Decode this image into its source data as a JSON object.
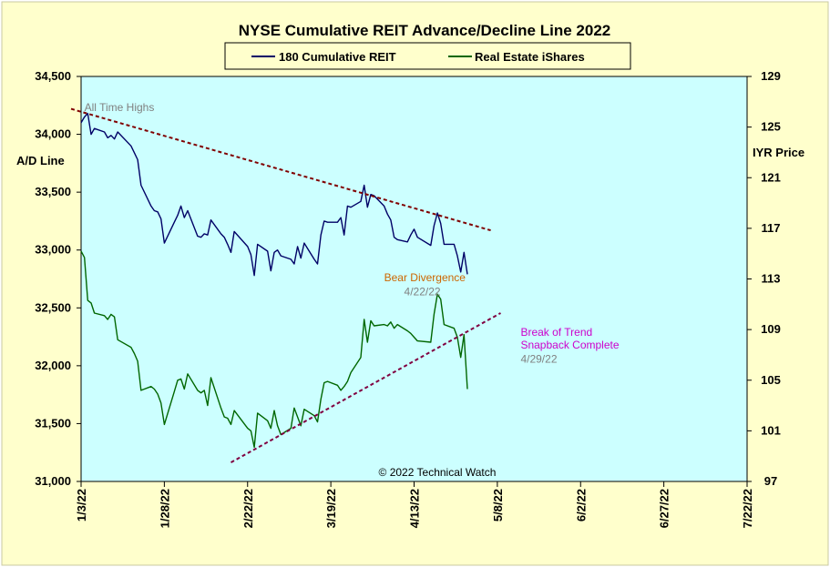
{
  "chart_data": {
    "type": "line",
    "title": "NYSE Cumulative  REIT Advance/Decline  Line 2022",
    "left_axis": {
      "label": "A/D Line",
      "range": [
        31000,
        34500
      ],
      "ticks": [
        "31,000",
        "31,500",
        "32,000",
        "32,500",
        "33,000",
        "33,500",
        "34,000",
        "34,500"
      ]
    },
    "right_axis": {
      "label": "IYR Price",
      "range": [
        97,
        129
      ],
      "ticks": [
        "97",
        "101",
        "105",
        "109",
        "113",
        "117",
        "121",
        "125",
        "129"
      ]
    },
    "x_axis": {
      "start": "1/3/22",
      "end": "7/22/22",
      "tick_labels": [
        "1/3/22",
        "1/28/22",
        "2/22/22",
        "3/19/22",
        "4/13/22",
        "5/8/22",
        "6/2/22",
        "6/27/22",
        "7/22/22"
      ]
    },
    "legend": {
      "placement": "top-center"
    },
    "grid": false,
    "colors": {
      "plot_background": "#ccffff",
      "outer_background": "#ffffcc",
      "border": "#ffffcc",
      "a_d_line": "#000066",
      "iyr_price": "#006600",
      "trendline": "#800000",
      "support_line": "#800040"
    },
    "series": [
      {
        "name": "180 Cumulative REIT",
        "axis": "left",
        "points": [
          [
            "1/3/22",
            34100
          ],
          [
            "1/4/22",
            34150
          ],
          [
            "1/5/22",
            34180
          ],
          [
            "1/6/22",
            34000
          ],
          [
            "1/7/22",
            34050
          ],
          [
            "1/10/22",
            34020
          ],
          [
            "1/11/22",
            33970
          ],
          [
            "1/12/22",
            33990
          ],
          [
            "1/13/22",
            33960
          ],
          [
            "1/14/22",
            34020
          ],
          [
            "1/18/22",
            33900
          ],
          [
            "1/19/22",
            33840
          ],
          [
            "1/20/22",
            33780
          ],
          [
            "1/21/22",
            33560
          ],
          [
            "1/24/22",
            33380
          ],
          [
            "1/25/22",
            33340
          ],
          [
            "1/26/22",
            33330
          ],
          [
            "1/27/22",
            33270
          ],
          [
            "1/28/22",
            33060
          ],
          [
            "1/31/22",
            33240
          ],
          [
            "2/1/22",
            33300
          ],
          [
            "2/2/22",
            33380
          ],
          [
            "2/3/22",
            33280
          ],
          [
            "2/4/22",
            33340
          ],
          [
            "2/7/22",
            33120
          ],
          [
            "2/8/22",
            33110
          ],
          [
            "2/9/22",
            33140
          ],
          [
            "2/10/22",
            33130
          ],
          [
            "2/11/22",
            33260
          ],
          [
            "2/14/22",
            33140
          ],
          [
            "2/15/22",
            33110
          ],
          [
            "2/16/22",
            33050
          ],
          [
            "2/17/22",
            32980
          ],
          [
            "2/18/22",
            33160
          ],
          [
            "2/22/22",
            33030
          ],
          [
            "2/23/22",
            32960
          ],
          [
            "2/24/22",
            32780
          ],
          [
            "2/25/22",
            33050
          ],
          [
            "2/28/22",
            32990
          ],
          [
            "3/1/22",
            32820
          ],
          [
            "3/2/22",
            32980
          ],
          [
            "3/3/22",
            33000
          ],
          [
            "3/4/22",
            32950
          ],
          [
            "3/7/22",
            32920
          ],
          [
            "3/8/22",
            32880
          ],
          [
            "3/9/22",
            33030
          ],
          [
            "3/10/22",
            32930
          ],
          [
            "3/11/22",
            33060
          ],
          [
            "3/14/22",
            32920
          ],
          [
            "3/15/22",
            32880
          ],
          [
            "3/16/22",
            33130
          ],
          [
            "3/17/22",
            33250
          ],
          [
            "3/18/22",
            33240
          ],
          [
            "3/21/22",
            33240
          ],
          [
            "3/22/22",
            33280
          ],
          [
            "3/23/22",
            33130
          ],
          [
            "3/24/22",
            33380
          ],
          [
            "3/25/22",
            33370
          ],
          [
            "3/28/22",
            33420
          ],
          [
            "3/29/22",
            33560
          ],
          [
            "3/30/22",
            33370
          ],
          [
            "3/31/22",
            33480
          ],
          [
            "4/1/22",
            33470
          ],
          [
            "4/4/22",
            33380
          ],
          [
            "4/5/22",
            33310
          ],
          [
            "4/6/22",
            33260
          ],
          [
            "4/7/22",
            33110
          ],
          [
            "4/8/22",
            33090
          ],
          [
            "4/11/22",
            33070
          ],
          [
            "4/12/22",
            33130
          ],
          [
            "4/13/22",
            33180
          ],
          [
            "4/14/22",
            33110
          ],
          [
            "4/18/22",
            33040
          ],
          [
            "4/19/22",
            33210
          ],
          [
            "4/20/22",
            33320
          ],
          [
            "4/21/22",
            33230
          ],
          [
            "4/22/22",
            33050
          ],
          [
            "4/25/22",
            33050
          ],
          [
            "4/26/22",
            32950
          ],
          [
            "4/27/22",
            32810
          ],
          [
            "4/28/22",
            32980
          ],
          [
            "4/29/22",
            32790
          ]
        ]
      },
      {
        "name": "Real Estate iShares",
        "axis": "right",
        "points": [
          [
            "1/3/22",
            115.2
          ],
          [
            "1/4/22",
            114.7
          ],
          [
            "1/5/22",
            111.3
          ],
          [
            "1/6/22",
            111.1
          ],
          [
            "1/7/22",
            110.3
          ],
          [
            "1/10/22",
            110.1
          ],
          [
            "1/11/22",
            109.8
          ],
          [
            "1/12/22",
            110.2
          ],
          [
            "1/13/22",
            110.0
          ],
          [
            "1/14/22",
            108.2
          ],
          [
            "1/18/22",
            107.6
          ],
          [
            "1/19/22",
            107.1
          ],
          [
            "1/20/22",
            106.5
          ],
          [
            "1/21/22",
            104.2
          ],
          [
            "1/24/22",
            104.5
          ],
          [
            "1/25/22",
            104.3
          ],
          [
            "1/26/22",
            103.9
          ],
          [
            "1/27/22",
            103.2
          ],
          [
            "1/28/22",
            101.5
          ],
          [
            "1/31/22",
            104.1
          ],
          [
            "2/1/22",
            105.0
          ],
          [
            "2/2/22",
            105.1
          ],
          [
            "2/3/22",
            104.3
          ],
          [
            "2/4/22",
            105.5
          ],
          [
            "2/7/22",
            104.2
          ],
          [
            "2/8/22",
            104.0
          ],
          [
            "2/9/22",
            104.2
          ],
          [
            "2/10/22",
            103.0
          ],
          [
            "2/11/22",
            105.2
          ],
          [
            "2/14/22",
            102.8
          ],
          [
            "2/15/22",
            102.1
          ],
          [
            "2/16/22",
            102.0
          ],
          [
            "2/17/22",
            101.5
          ],
          [
            "2/18/22",
            102.6
          ],
          [
            "2/22/22",
            101.2
          ],
          [
            "2/23/22",
            101.0
          ],
          [
            "2/24/22",
            99.7
          ],
          [
            "2/25/22",
            102.4
          ],
          [
            "2/28/22",
            101.8
          ],
          [
            "3/1/22",
            101.2
          ],
          [
            "3/2/22",
            102.6
          ],
          [
            "3/3/22",
            101.4
          ],
          [
            "3/4/22",
            100.7
          ],
          [
            "3/7/22",
            101.2
          ],
          [
            "3/8/22",
            102.8
          ],
          [
            "3/9/22",
            102.1
          ],
          [
            "3/10/22",
            101.4
          ],
          [
            "3/11/22",
            102.7
          ],
          [
            "3/14/22",
            102.2
          ],
          [
            "3/15/22",
            101.7
          ],
          [
            "3/16/22",
            103.5
          ],
          [
            "3/17/22",
            104.8
          ],
          [
            "3/18/22",
            104.9
          ],
          [
            "3/21/22",
            104.6
          ],
          [
            "3/22/22",
            104.2
          ],
          [
            "3/23/22",
            104.5
          ],
          [
            "3/24/22",
            104.9
          ],
          [
            "3/25/22",
            105.6
          ],
          [
            "3/28/22",
            106.8
          ],
          [
            "3/29/22",
            109.8
          ],
          [
            "3/30/22",
            108.0
          ],
          [
            "3/31/22",
            109.7
          ],
          [
            "4/1/22",
            109.3
          ],
          [
            "4/4/22",
            109.4
          ],
          [
            "4/5/22",
            109.3
          ],
          [
            "4/6/22",
            109.6
          ],
          [
            "4/7/22",
            109.1
          ],
          [
            "4/8/22",
            109.4
          ],
          [
            "4/11/22",
            108.9
          ],
          [
            "4/12/22",
            108.7
          ],
          [
            "4/13/22",
            108.4
          ],
          [
            "4/14/22",
            108.1
          ],
          [
            "4/18/22",
            108.0
          ],
          [
            "4/19/22",
            110.2
          ],
          [
            "4/20/22",
            111.8
          ],
          [
            "4/21/22",
            111.4
          ],
          [
            "4/22/22",
            109.4
          ],
          [
            "4/25/22",
            109.1
          ],
          [
            "4/26/22",
            108.4
          ],
          [
            "4/27/22",
            106.8
          ],
          [
            "4/28/22",
            108.6
          ],
          [
            "4/29/22",
            104.3
          ]
        ]
      },
      {
        "name": "",
        "axis": "left",
        "style": "dashed",
        "points": [
          [
            "12/31/21",
            34220
          ],
          [
            "5/6/22",
            33170
          ]
        ]
      },
      {
        "name": "",
        "axis": "right",
        "style": "dashed",
        "points": [
          [
            "2/17/22",
            98.5
          ],
          [
            "5/9/22",
            110.3
          ]
        ]
      }
    ],
    "annotations": [
      {
        "text": "All Time Highs",
        "color": "#808080",
        "date": "1/4/22",
        "value_left": 34200
      },
      {
        "text": "Bear Divergence",
        "color": "#cc6600",
        "date": "4/4/22",
        "value_left": 32730
      },
      {
        "text": "4/22/22",
        "color": "#808080",
        "date": "4/10/22",
        "value_left": 32610
      },
      {
        "text": "Break of Trend",
        "color": "#cc00cc",
        "date": "5/15/22",
        "value_right": 108.5
      },
      {
        "text": "Snapback Complete",
        "color": "#cc00cc",
        "date": "5/15/22",
        "value_right": 107.5
      },
      {
        "text": "4/29/22",
        "color": "#808080",
        "date": "5/15/22",
        "value_right": 106.4
      }
    ],
    "copyright": "© 2022 Technical  Watch"
  }
}
